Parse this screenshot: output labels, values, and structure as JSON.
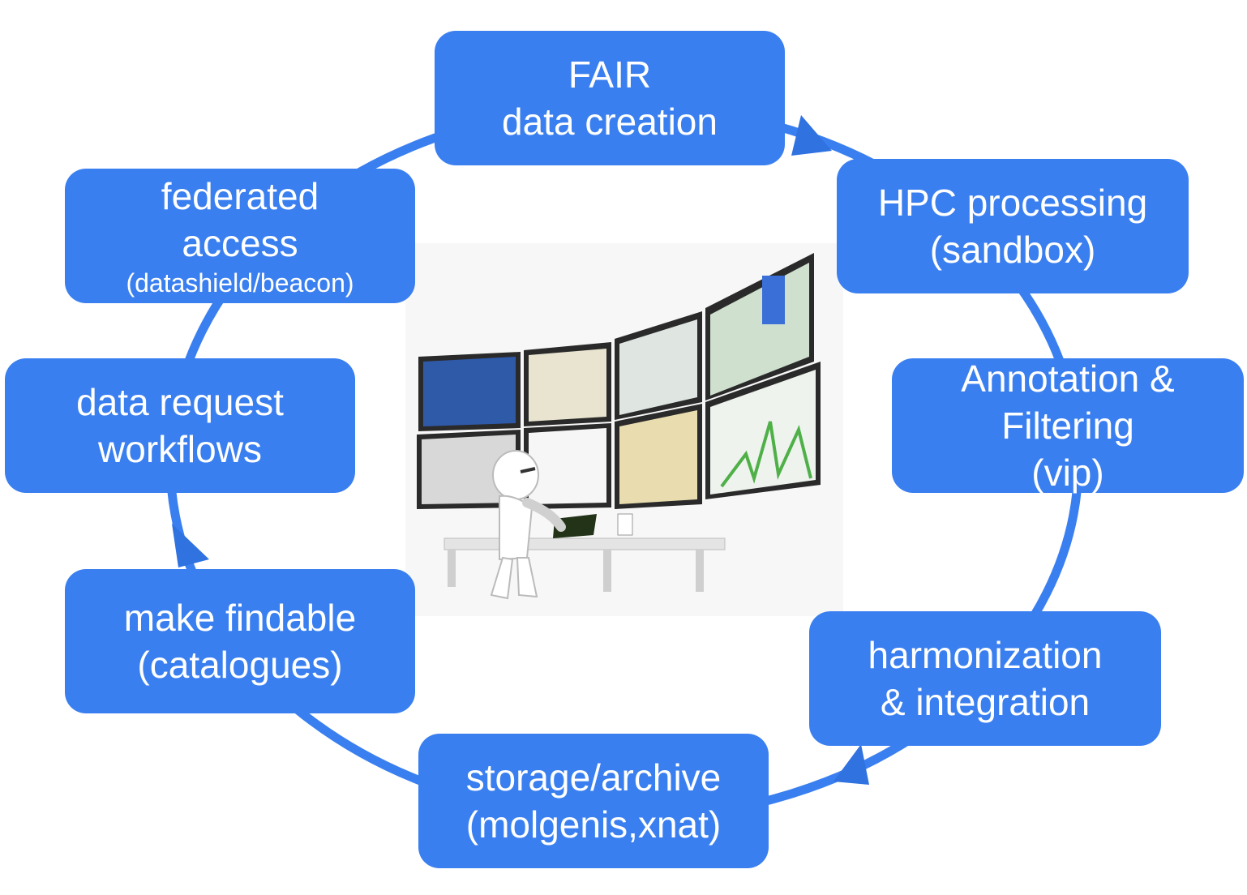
{
  "colors": {
    "node_fill": "#3a7ff0",
    "ring": "#3a7ff0",
    "text": "#ffffff"
  },
  "nodes": {
    "fair": [
      "FAIR",
      "data creation"
    ],
    "hpc": [
      "HPC processing",
      "(sandbox)"
    ],
    "annotation": [
      "Annotation &",
      "Filtering",
      "(vip)"
    ],
    "harmonization": [
      "harmonization",
      "& integration"
    ],
    "storage": [
      "storage/archive",
      "(molgenis,xnat)"
    ],
    "findable": [
      "make findable",
      "(catalogues)"
    ],
    "request": [
      "data request",
      "workflows"
    ],
    "federated": [
      "federated",
      "access",
      "(datashield/beacon)"
    ]
  },
  "center_image": "control-room-illustration"
}
